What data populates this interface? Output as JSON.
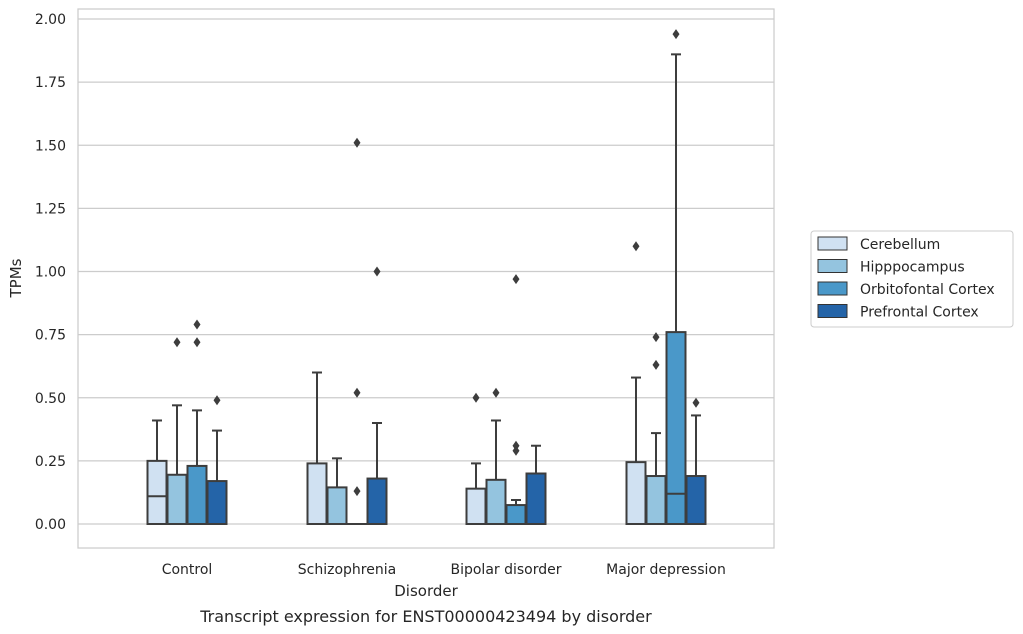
{
  "chart_data": {
    "type": "box",
    "xlabel": "Disorder",
    "ylabel": "TPMs",
    "caption": "Transcript expression for ENST00000423494 by disorder",
    "ylim": [
      -0.1,
      2.03
    ],
    "yticks": [
      "0.00",
      "0.25",
      "0.50",
      "0.75",
      "1.00",
      "1.25",
      "1.50",
      "1.75",
      "2.00"
    ],
    "grid": "horizontal",
    "legend_position": "right",
    "categories": [
      "Control",
      "Schizophrenia",
      "Bipolar disorder",
      "Major depression"
    ],
    "series": [
      {
        "name": "Cerebellum",
        "color": "#d0e1f2",
        "boxes": [
          {
            "q1": 0,
            "median": 0.11,
            "q3": 0.25,
            "whislo": 0,
            "whishi": 0.41,
            "fliers": []
          },
          {
            "q1": 0,
            "median": 0,
            "q3": 0.24,
            "whislo": 0,
            "whishi": 0.6,
            "fliers": []
          },
          {
            "q1": 0,
            "median": 0,
            "q3": 0.14,
            "whislo": 0,
            "whishi": 0.24,
            "fliers": [
              0.5
            ]
          },
          {
            "q1": 0,
            "median": 0,
            "q3": 0.245,
            "whislo": 0,
            "whishi": 0.58,
            "fliers": [
              1.1
            ]
          }
        ]
      },
      {
        "name": "Hipppocampus",
        "color": "#94c4df",
        "boxes": [
          {
            "q1": 0,
            "median": 0,
            "q3": 0.195,
            "whislo": 0,
            "whishi": 0.47,
            "fliers": [
              0.72
            ]
          },
          {
            "q1": 0,
            "median": 0,
            "q3": 0.145,
            "whislo": 0,
            "whishi": 0.26,
            "fliers": []
          },
          {
            "q1": 0,
            "median": 0,
            "q3": 0.175,
            "whislo": 0,
            "whishi": 0.41,
            "fliers": [
              0.52
            ]
          },
          {
            "q1": 0,
            "median": 0,
            "q3": 0.19,
            "whislo": 0,
            "whishi": 0.36,
            "fliers": [
              0.63,
              0.74
            ]
          }
        ]
      },
      {
        "name": "Orbitofontal Cortex",
        "color": "#4a98c9",
        "boxes": [
          {
            "q1": 0,
            "median": 0,
            "q3": 0.23,
            "whislo": 0,
            "whishi": 0.45,
            "fliers": [
              0.72,
              0.79
            ]
          },
          {
            "q1": 0,
            "median": 0,
            "q3": 0,
            "whislo": 0,
            "whishi": 0,
            "fliers": [
              0.13,
              0.52,
              1.51
            ]
          },
          {
            "q1": 0,
            "median": 0,
            "q3": 0.075,
            "whislo": 0,
            "whishi": 0.095,
            "fliers": [
              0.29,
              0.31,
              0.97
            ]
          },
          {
            "q1": 0,
            "median": 0.12,
            "q3": 0.76,
            "whislo": 0,
            "whishi": 1.86,
            "fliers": [
              1.94
            ]
          }
        ]
      },
      {
        "name": "Prefrontal Cortex",
        "color": "#2464a8",
        "boxes": [
          {
            "q1": 0,
            "median": 0,
            "q3": 0.17,
            "whislo": 0,
            "whishi": 0.37,
            "fliers": [
              0.49
            ]
          },
          {
            "q1": 0,
            "median": 0,
            "q3": 0.18,
            "whislo": 0,
            "whishi": 0.4,
            "fliers": [
              1.0
            ]
          },
          {
            "q1": 0,
            "median": 0,
            "q3": 0.2,
            "whislo": 0,
            "whishi": 0.31,
            "fliers": []
          },
          {
            "q1": 0,
            "median": 0,
            "q3": 0.19,
            "whislo": 0,
            "whishi": 0.43,
            "fliers": [
              0.48
            ]
          }
        ]
      }
    ]
  }
}
